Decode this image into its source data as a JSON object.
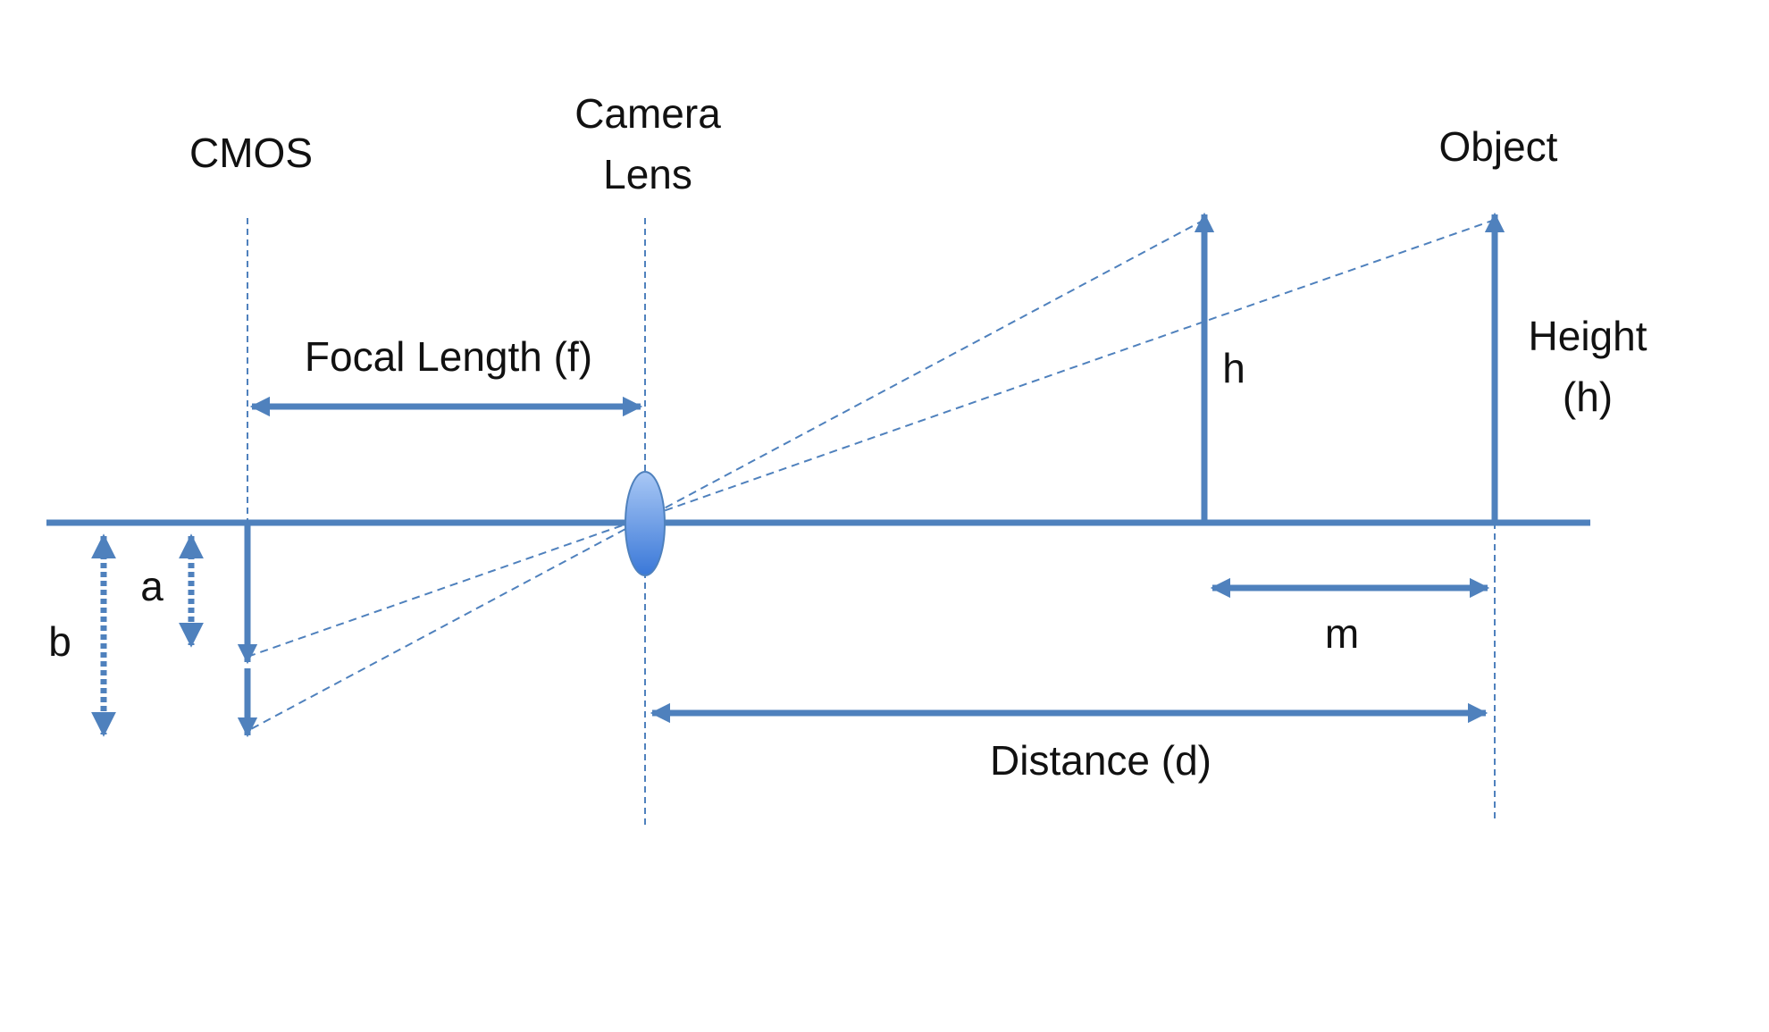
{
  "labels": {
    "cmos": "CMOS",
    "camera_lens_line1": "Camera",
    "camera_lens_line2": "Lens",
    "object": "Object",
    "focal_length": "Focal Length (f)",
    "h_near": "h",
    "height_line1": "Height",
    "height_line2": "(h)",
    "a": "a",
    "b": "b",
    "m": "m",
    "distance": "Distance (d)"
  },
  "colors": {
    "line": "#4f81bd",
    "lens_light": "#a9c8f5",
    "lens_dark": "#3a78d8",
    "text": "#111111"
  }
}
